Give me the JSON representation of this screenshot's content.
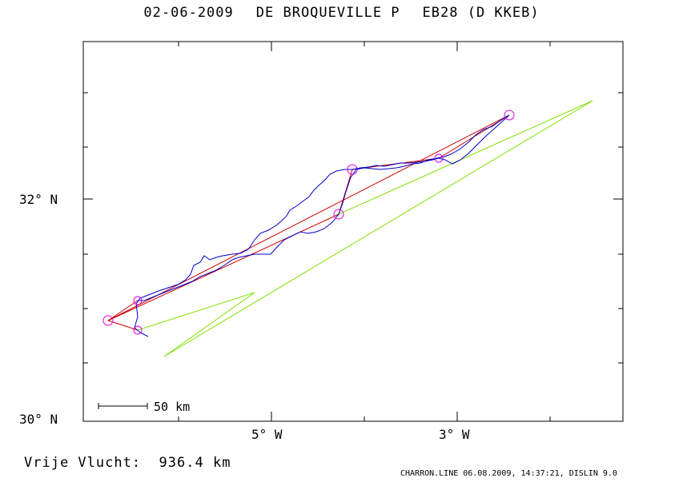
{
  "header": {
    "date": "02-06-2009",
    "pilot": "DE BROQUEVILLE P",
    "glider": "EB28 (D KKEB)"
  },
  "axes": {
    "y_labels": [
      "32° N",
      "30° N"
    ],
    "x_labels": [
      "5° W",
      "3° W"
    ]
  },
  "scale_bar": {
    "label": "50 km"
  },
  "footer": {
    "distance_label": "Vrije Vlucht:",
    "distance_value": "936.4 km",
    "generator": "CHARRON.LINE 06.08.2009, 14:37:21, DISLIN 9.0"
  },
  "colors": {
    "track": "#0000c8",
    "task": "#d00000",
    "green": "#80e000",
    "turnpoint": "#e000e0",
    "frame": "#000000"
  }
}
